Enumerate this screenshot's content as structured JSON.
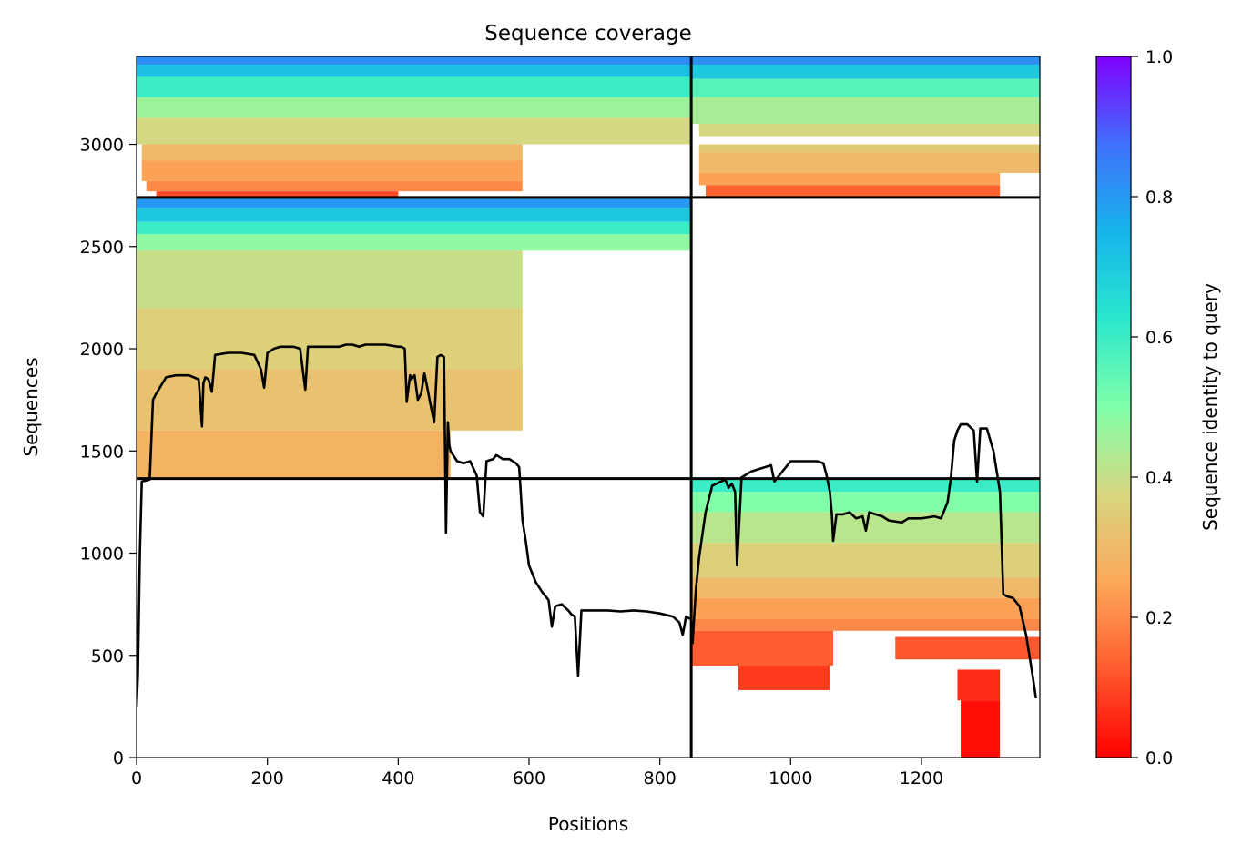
{
  "chart_data": {
    "type": "heatmap",
    "title": "Sequence coverage",
    "xlabel": "Positions",
    "ylabel": "Sequences",
    "xlim": [
      0,
      1381
    ],
    "ylim": [
      0,
      3430
    ],
    "xticks": [
      {
        "v": 0,
        "label": "0"
      },
      {
        "v": 200,
        "label": "200"
      },
      {
        "v": 400,
        "label": "400"
      },
      {
        "v": 600,
        "label": "600"
      },
      {
        "v": 800,
        "label": "800"
      },
      {
        "v": 1000,
        "label": "1000"
      },
      {
        "v": 1200,
        "label": "1200"
      }
    ],
    "yticks": [
      {
        "v": 0,
        "label": "0"
      },
      {
        "v": 500,
        "label": "500"
      },
      {
        "v": 1000,
        "label": "1000"
      },
      {
        "v": 1500,
        "label": "1500"
      },
      {
        "v": 2000,
        "label": "2000"
      },
      {
        "v": 2500,
        "label": "2500"
      },
      {
        "v": 3000,
        "label": "3000"
      }
    ],
    "chain_boundary_x": 848,
    "block_boundaries_y": [
      1365,
      2740
    ],
    "colorbar": {
      "label": "Sequence identity to query",
      "range": [
        0,
        1
      ],
      "colormap": "rainbow_r",
      "ticks": [
        {
          "v": 0.0,
          "label": "0.0"
        },
        {
          "v": 0.2,
          "label": "0.2"
        },
        {
          "v": 0.4,
          "label": "0.4"
        },
        {
          "v": 0.6,
          "label": "0.6"
        },
        {
          "v": 0.8,
          "label": "0.8"
        },
        {
          "v": 1.0,
          "label": "1.0"
        }
      ]
    },
    "coverage_blocks": [
      {
        "name": "pair-block",
        "rows": [
          {
            "x0": 0,
            "x1": 848,
            "y0": 3390,
            "y1": 3430,
            "id": 0.82
          },
          {
            "x0": 0,
            "x1": 848,
            "y0": 3330,
            "y1": 3390,
            "id": 0.72
          },
          {
            "x0": 0,
            "x1": 848,
            "y0": 3230,
            "y1": 3330,
            "id": 0.6
          },
          {
            "x0": 0,
            "x1": 848,
            "y0": 3130,
            "y1": 3230,
            "id": 0.46
          },
          {
            "x0": 0,
            "x1": 848,
            "y0": 3000,
            "y1": 3130,
            "id": 0.38
          },
          {
            "x0": 8,
            "x1": 590,
            "y0": 2920,
            "y1": 3000,
            "id": 0.3
          },
          {
            "x0": 8,
            "x1": 590,
            "y0": 2820,
            "y1": 2920,
            "id": 0.24
          },
          {
            "x0": 15,
            "x1": 590,
            "y0": 2770,
            "y1": 2820,
            "id": 0.2
          },
          {
            "x0": 30,
            "x1": 400,
            "y0": 2745,
            "y1": 2770,
            "id": 0.1
          },
          {
            "x0": 848,
            "x1": 1381,
            "y0": 3390,
            "y1": 3430,
            "id": 0.82
          },
          {
            "x0": 848,
            "x1": 1381,
            "y0": 3320,
            "y1": 3390,
            "id": 0.7
          },
          {
            "x0": 848,
            "x1": 1381,
            "y0": 3230,
            "y1": 3320,
            "id": 0.56
          },
          {
            "x0": 848,
            "x1": 1381,
            "y0": 3100,
            "y1": 3230,
            "id": 0.44
          },
          {
            "x0": 860,
            "x1": 1381,
            "y0": 3040,
            "y1": 3100,
            "id": 0.38
          },
          {
            "x0": 860,
            "x1": 1381,
            "y0": 2960,
            "y1": 3000,
            "id": 0.34
          },
          {
            "x0": 860,
            "x1": 1381,
            "y0": 2860,
            "y1": 2960,
            "id": 0.3
          },
          {
            "x0": 860,
            "x1": 1320,
            "y0": 2800,
            "y1": 2860,
            "id": 0.24
          },
          {
            "x0": 870,
            "x1": 1320,
            "y0": 2745,
            "y1": 2800,
            "id": 0.14
          }
        ]
      },
      {
        "name": "chain-a-block",
        "rows": [
          {
            "x0": 0,
            "x1": 848,
            "y0": 2690,
            "y1": 2740,
            "id": 0.8
          },
          {
            "x0": 0,
            "x1": 848,
            "y0": 2620,
            "y1": 2690,
            "id": 0.7
          },
          {
            "x0": 0,
            "x1": 848,
            "y0": 2560,
            "y1": 2620,
            "id": 0.6
          },
          {
            "x0": 0,
            "x1": 848,
            "y0": 2480,
            "y1": 2560,
            "id": 0.48
          },
          {
            "x0": 0,
            "x1": 590,
            "y0": 2200,
            "y1": 2480,
            "id": 0.4
          },
          {
            "x0": 0,
            "x1": 590,
            "y0": 1900,
            "y1": 2200,
            "id": 0.36
          },
          {
            "x0": 0,
            "x1": 590,
            "y0": 1600,
            "y1": 1900,
            "id": 0.32
          },
          {
            "x0": 0,
            "x1": 480,
            "y0": 1370,
            "y1": 1600,
            "id": 0.28
          }
        ]
      },
      {
        "name": "chain-b-block",
        "rows": [
          {
            "x0": 848,
            "x1": 1381,
            "y0": 1300,
            "y1": 1365,
            "id": 0.6
          },
          {
            "x0": 848,
            "x1": 1381,
            "y0": 1200,
            "y1": 1300,
            "id": 0.5
          },
          {
            "x0": 848,
            "x1": 1381,
            "y0": 1050,
            "y1": 1200,
            "id": 0.42
          },
          {
            "x0": 848,
            "x1": 1381,
            "y0": 880,
            "y1": 1050,
            "id": 0.36
          },
          {
            "x0": 848,
            "x1": 1381,
            "y0": 780,
            "y1": 880,
            "id": 0.3
          },
          {
            "x0": 848,
            "x1": 1381,
            "y0": 680,
            "y1": 780,
            "id": 0.24
          },
          {
            "x0": 848,
            "x1": 1381,
            "y0": 620,
            "y1": 680,
            "id": 0.2
          },
          {
            "x0": 848,
            "x1": 1065,
            "y0": 450,
            "y1": 620,
            "id": 0.13
          },
          {
            "x0": 1160,
            "x1": 1381,
            "y0": 480,
            "y1": 590,
            "id": 0.12
          },
          {
            "x0": 920,
            "x1": 1060,
            "y0": 330,
            "y1": 450,
            "id": 0.08
          },
          {
            "x0": 1255,
            "x1": 1320,
            "y0": 280,
            "y1": 430,
            "id": 0.06
          },
          {
            "x0": 1260,
            "x1": 1320,
            "y0": 0,
            "y1": 280,
            "id": 0.02
          }
        ]
      }
    ],
    "coverage_line": {
      "x": [
        0,
        2,
        5,
        8,
        20,
        25,
        30,
        45,
        60,
        80,
        95,
        100,
        102,
        105,
        110,
        115,
        120,
        140,
        160,
        180,
        190,
        195,
        200,
        210,
        220,
        240,
        250,
        258,
        262,
        270,
        280,
        300,
        310,
        320,
        330,
        340,
        350,
        360,
        380,
        400,
        405,
        410,
        413,
        418,
        420,
        425,
        430,
        435,
        440,
        445,
        448,
        455,
        460,
        465,
        470,
        473,
        476,
        478,
        480,
        490,
        500,
        510,
        520,
        525,
        530,
        535,
        545,
        550,
        560,
        570,
        575,
        580,
        585,
        590,
        595,
        600,
        610,
        620,
        630,
        635,
        640,
        650,
        660,
        665,
        670,
        675,
        680,
        700,
        720,
        740,
        760,
        780,
        800,
        820,
        830,
        835,
        840,
        845,
        848,
        850,
        855,
        860,
        870,
        880,
        900,
        905,
        910,
        915,
        918,
        925,
        940,
        960,
        970,
        975,
        1000,
        1020,
        1040,
        1050,
        1055,
        1060,
        1063,
        1065,
        1070,
        1080,
        1090,
        1100,
        1110,
        1115,
        1120,
        1130,
        1140,
        1150,
        1170,
        1180,
        1200,
        1220,
        1230,
        1240,
        1245,
        1250,
        1255,
        1260,
        1270,
        1280,
        1285,
        1290,
        1300,
        1310,
        1320,
        1325,
        1330,
        1340,
        1350,
        1360,
        1365,
        1370,
        1375,
        1381
      ],
      "y": [
        250,
        400,
        1000,
        1350,
        1360,
        1750,
        1780,
        1860,
        1870,
        1870,
        1850,
        1620,
        1830,
        1860,
        1850,
        1790,
        1970,
        1980,
        1980,
        1970,
        1900,
        1810,
        1980,
        2000,
        2010,
        2010,
        2000,
        1800,
        2010,
        2010,
        2010,
        2010,
        2010,
        2020,
        2020,
        2010,
        2020,
        2020,
        2020,
        2010,
        2010,
        2000,
        1740,
        1870,
        1850,
        1870,
        1750,
        1780,
        1880,
        1800,
        1750,
        1640,
        1960,
        1970,
        1960,
        1100,
        1640,
        1530,
        1500,
        1450,
        1440,
        1450,
        1380,
        1200,
        1180,
        1450,
        1460,
        1480,
        1460,
        1460,
        1450,
        1440,
        1420,
        1160,
        1060,
        940,
        860,
        810,
        770,
        640,
        740,
        750,
        720,
        700,
        690,
        400,
        720,
        720,
        720,
        715,
        720,
        715,
        705,
        690,
        660,
        600,
        690,
        680,
        680,
        560,
        820,
        980,
        1200,
        1330,
        1360,
        1320,
        1340,
        1300,
        940,
        1370,
        1400,
        1420,
        1430,
        1350,
        1450,
        1450,
        1450,
        1440,
        1380,
        1300,
        1190,
        1060,
        1190,
        1190,
        1200,
        1170,
        1180,
        1110,
        1200,
        1190,
        1180,
        1160,
        1150,
        1170,
        1170,
        1180,
        1170,
        1250,
        1370,
        1550,
        1600,
        1630,
        1630,
        1600,
        1350,
        1610,
        1610,
        1500,
        1300,
        800,
        790,
        780,
        740,
        600,
        500,
        400,
        290
      ]
    }
  }
}
